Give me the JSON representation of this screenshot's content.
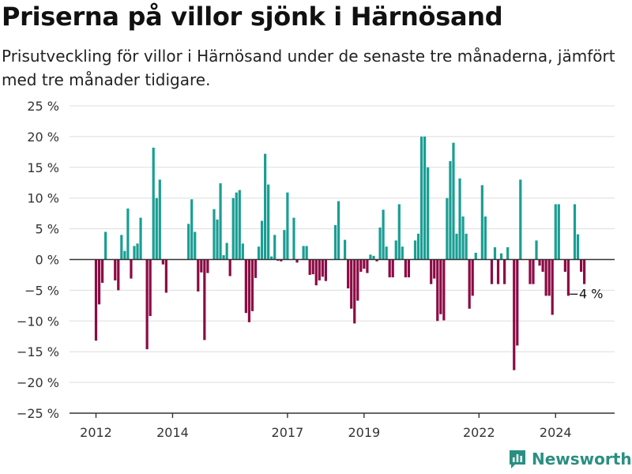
{
  "title": "Priserna på villor sjönk i Härnösand",
  "subtitle": "Prisutveckling för villor i Härnösand under de senaste tre månaderna, jämfört med tre månader tidigare.",
  "brand": "Newsworthy",
  "colors": {
    "positive": "#1a9e94",
    "negative": "#8c0a44",
    "brand": "#2a8f82",
    "grid": "#dddddd",
    "axis": "#333333"
  },
  "chart_data": {
    "type": "bar",
    "ylim": [
      -25,
      25
    ],
    "yticks": [
      -25,
      -20,
      -15,
      -10,
      -5,
      0,
      5,
      10,
      15,
      20,
      25
    ],
    "ytick_labels": [
      "−25 %",
      "−20 %",
      "−15 %",
      "−10 %",
      "−5 %",
      "0 %",
      "5 %",
      "10 %",
      "15 %",
      "20 %",
      "25 %"
    ],
    "xticks": [
      {
        "date": "2012-01",
        "label": "2012"
      },
      {
        "date": "2014-01",
        "label": "2014"
      },
      {
        "date": "2017-01",
        "label": "2017"
      },
      {
        "date": "2019-01",
        "label": "2019"
      },
      {
        "date": "2022-01",
        "label": "2022"
      },
      {
        "date": "2024-01",
        "label": "2024"
      }
    ],
    "annotation": {
      "date": "2024-10",
      "value": -4,
      "label": "−4 %"
    },
    "x": [
      "2012-01",
      "2012-02",
      "2012-03",
      "2012-04",
      "2012-05",
      "2012-06",
      "2012-07",
      "2012-08",
      "2012-09",
      "2012-10",
      "2012-11",
      "2012-12",
      "2013-01",
      "2013-02",
      "2013-03",
      "2013-04",
      "2013-05",
      "2013-06",
      "2013-07",
      "2013-08",
      "2013-09",
      "2013-10",
      "2013-11",
      "2013-12",
      "2014-01",
      "2014-02",
      "2014-03",
      "2014-04",
      "2014-05",
      "2014-06",
      "2014-07",
      "2014-08",
      "2014-09",
      "2014-10",
      "2014-11",
      "2014-12",
      "2015-01",
      "2015-02",
      "2015-03",
      "2015-04",
      "2015-05",
      "2015-06",
      "2015-07",
      "2015-08",
      "2015-09",
      "2015-10",
      "2015-11",
      "2015-12",
      "2016-01",
      "2016-02",
      "2016-03",
      "2016-04",
      "2016-05",
      "2016-06",
      "2016-07",
      "2016-08",
      "2016-09",
      "2016-10",
      "2016-11",
      "2016-12",
      "2017-01",
      "2017-02",
      "2017-03",
      "2017-04",
      "2017-05",
      "2017-06",
      "2017-07",
      "2017-08",
      "2017-09",
      "2017-10",
      "2017-11",
      "2017-12",
      "2018-01",
      "2018-02",
      "2018-03",
      "2018-04",
      "2018-05",
      "2018-06",
      "2018-07",
      "2018-08",
      "2018-09",
      "2018-10",
      "2018-11",
      "2018-12",
      "2019-01",
      "2019-02",
      "2019-03",
      "2019-04",
      "2019-05",
      "2019-06",
      "2019-07",
      "2019-08",
      "2019-09",
      "2019-10",
      "2019-11",
      "2019-12",
      "2020-01",
      "2020-02",
      "2020-03",
      "2020-04",
      "2020-05",
      "2020-06",
      "2020-07",
      "2020-08",
      "2020-09",
      "2020-10",
      "2020-11",
      "2020-12",
      "2021-01",
      "2021-02",
      "2021-03",
      "2021-04",
      "2021-05",
      "2021-06",
      "2021-07",
      "2021-08",
      "2021-09",
      "2021-10",
      "2021-11",
      "2021-12",
      "2022-01",
      "2022-02",
      "2022-03",
      "2022-04",
      "2022-05",
      "2022-06",
      "2022-07",
      "2022-08",
      "2022-09",
      "2022-10",
      "2022-11",
      "2022-12",
      "2023-01",
      "2023-02",
      "2023-03",
      "2023-04",
      "2023-05",
      "2023-06",
      "2023-07",
      "2023-08",
      "2023-09",
      "2023-10",
      "2023-11",
      "2023-12",
      "2024-01",
      "2024-02",
      "2024-03",
      "2024-04",
      "2024-05",
      "2024-06",
      "2024-07",
      "2024-08",
      "2024-09",
      "2024-10"
    ],
    "values": [
      -13.2,
      -7.3,
      -3.8,
      4.5,
      null,
      null,
      -3.4,
      -5,
      4,
      1.4,
      8.3,
      -3.1,
      2.2,
      2.6,
      6.8,
      null,
      -14.6,
      -9.2,
      18.2,
      10,
      13,
      -0.8,
      -5.4,
      null,
      null,
      null,
      null,
      null,
      null,
      5.8,
      9.8,
      4.5,
      -5.2,
      -2.1,
      -13.1,
      -2.2,
      null,
      8.2,
      6.5,
      12.4,
      0.7,
      2.7,
      -2.7,
      10,
      10.9,
      11.3,
      2.6,
      -8.7,
      -10.2,
      -8.4,
      -3,
      2.1,
      6.3,
      17.2,
      12.2,
      0.5,
      4,
      -0.2,
      -0.3,
      4.8,
      10.9,
      null,
      6.8,
      -0.5,
      null,
      2.2,
      2.2,
      -2.5,
      -2.4,
      -4.2,
      -3.4,
      -2.8,
      -3.5,
      null,
      null,
      5.6,
      9.5,
      null,
      3.2,
      -4.7,
      -8,
      -10.4,
      -6.7,
      -2,
      -1.5,
      -2.2,
      0.8,
      0.6,
      -0.3,
      5.2,
      8.1,
      2.1,
      -2.9,
      -2.9,
      3.1,
      9,
      2.1,
      -2.9,
      -2.9,
      null,
      3.1,
      4.2,
      20,
      20,
      15,
      -4,
      -3.1,
      -10,
      -8.9,
      -9.9,
      10,
      16,
      19,
      4.2,
      13.2,
      7,
      4.2,
      -8,
      -5.9,
      1.1,
      null,
      12.1,
      7,
      null,
      -4,
      2,
      -4,
      1,
      -4,
      2,
      null,
      -18,
      -14,
      13,
      null,
      null,
      -4,
      -4,
      3.1,
      -1,
      -2,
      -5.9,
      -5.9,
      -9,
      9,
      9,
      null,
      -2,
      -5.9,
      null,
      9,
      4.1,
      -2,
      -4
    ]
  }
}
